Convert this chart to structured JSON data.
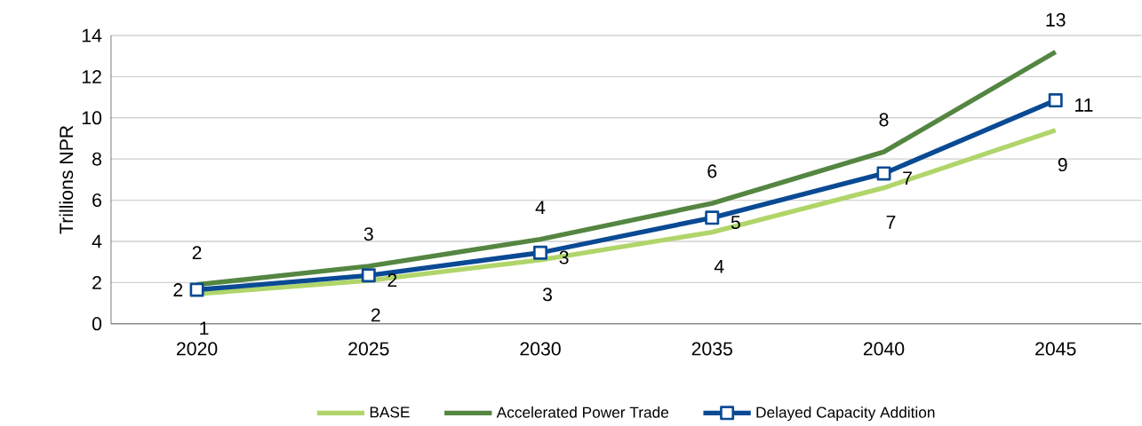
{
  "chart_data": {
    "type": "line",
    "ylabel": "Trillions NPR",
    "categories": [
      "2020",
      "2025",
      "2030",
      "2035",
      "2040",
      "2045"
    ],
    "series": [
      {
        "name": "BASE",
        "color": "#b0d56a",
        "marker": "none",
        "values": [
          1.45,
          2.1,
          3.1,
          4.45,
          6.6,
          9.4
        ],
        "value_labels": [
          "1",
          "2",
          "3",
          "4",
          "7",
          "9"
        ]
      },
      {
        "name": "Accelerated Power Trade",
        "color": "#548642",
        "marker": "none",
        "values": [
          1.9,
          2.8,
          4.1,
          5.85,
          8.35,
          13.2
        ],
        "value_labels": [
          "2",
          "3",
          "4",
          "6",
          "8",
          "13"
        ]
      },
      {
        "name": "Delayed Capacity Addition",
        "color": "#0a4a94",
        "marker": "square",
        "values": [
          1.65,
          2.35,
          3.45,
          5.15,
          7.3,
          10.85
        ],
        "value_labels": [
          "2",
          "2",
          "3",
          "5",
          "7",
          "11"
        ]
      }
    ],
    "ylim": [
      0,
      14
    ],
    "yticks": [
      0,
      2,
      4,
      6,
      8,
      10,
      12,
      14
    ],
    "grid": "y",
    "legend": "bottom",
    "line_style": "solid"
  }
}
